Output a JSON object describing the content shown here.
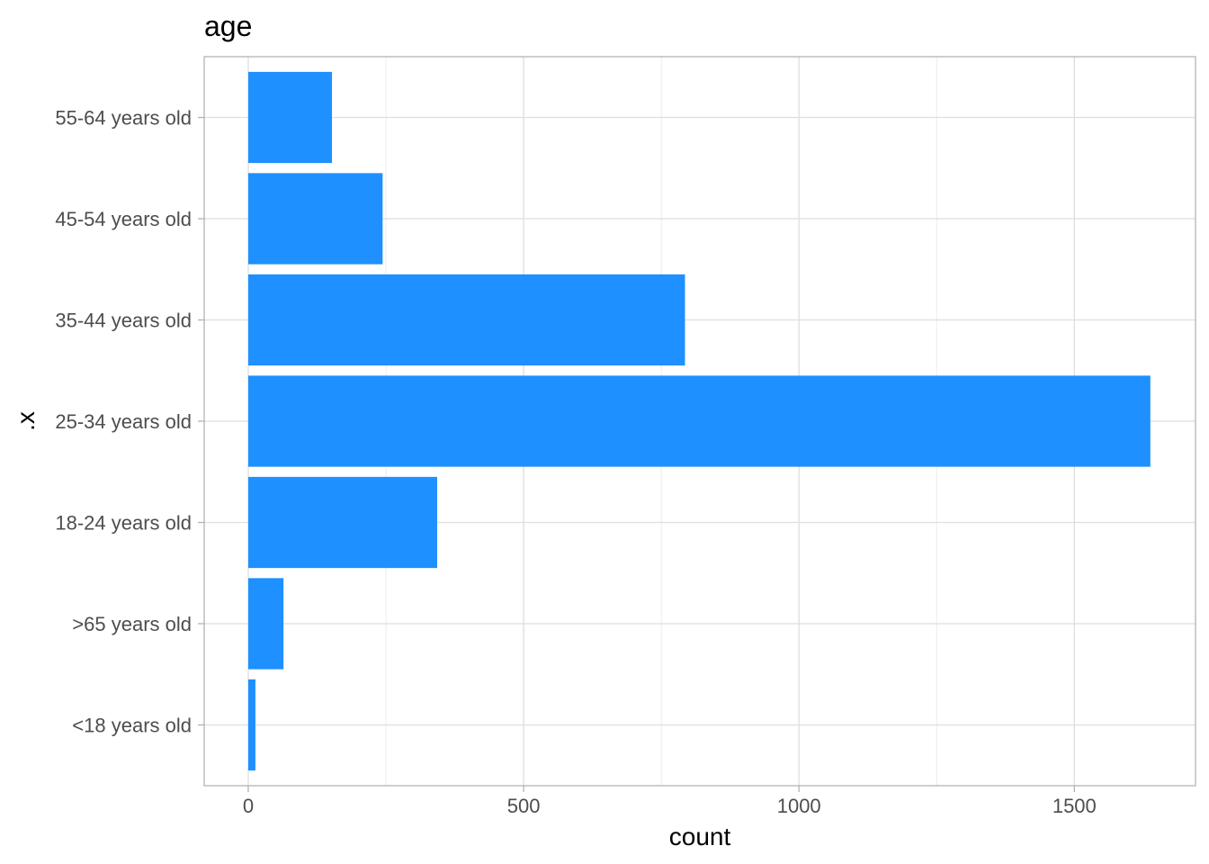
{
  "chart_data": {
    "type": "bar",
    "orientation": "horizontal",
    "title": "age",
    "xlabel": "count",
    "ylabel": ".x",
    "categories": [
      "<18 years old",
      ">65 years old",
      "18-24 years old",
      "25-34 years old",
      "35-44 years old",
      "45-54 years old",
      "55-64 years old"
    ],
    "values": [
      13,
      64,
      343,
      1638,
      793,
      244,
      152
    ],
    "xlim": [
      -80,
      1720
    ],
    "x_ticks": [
      0,
      500,
      1000,
      1500
    ],
    "x_minor_ticks": [
      250,
      750,
      1250
    ],
    "grid": true,
    "bar_color": "#1E90FF"
  }
}
